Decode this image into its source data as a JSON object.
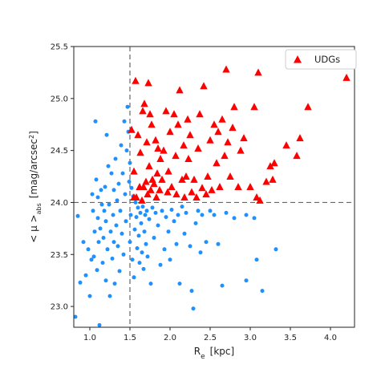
{
  "chart_data": {
    "type": "scatter",
    "title": "",
    "xlabel": "R",
    "xlabel_sub": "e",
    "xlabel_unit": "[kpc]",
    "ylabel": "< μ >",
    "ylabel_sub": "abs",
    "ylabel_unit": "[mag/arcsec",
    "ylabel_sup": "2",
    "ylabel_close": "]",
    "xlim": [
      0.8,
      4.3
    ],
    "ylim": [
      22.8,
      25.5
    ],
    "x_ticks": [
      1.0,
      1.5,
      2.0,
      2.5,
      3.0,
      3.5,
      4.0
    ],
    "x_tick_labels": [
      "1.0",
      "1.5",
      "2.0",
      "2.5",
      "3.0",
      "3.5",
      "4.0"
    ],
    "y_ticks": [
      23.0,
      23.5,
      24.0,
      24.5,
      25.0,
      25.5
    ],
    "y_tick_labels": [
      "23.0",
      "23.5",
      "24.0",
      "24.5",
      "25.0",
      "25.5"
    ],
    "grid": false,
    "legend_position": "top-right",
    "reference_lines": [
      {
        "orientation": "vertical",
        "value": 1.5,
        "style": "dashed"
      },
      {
        "orientation": "horizontal",
        "value": 24.0,
        "style": "dashed"
      }
    ],
    "series": [
      {
        "name": "",
        "marker": "circle",
        "color": "#1e90ff",
        "points": [
          [
            0.82,
            22.9
          ],
          [
            0.85,
            23.87
          ],
          [
            0.88,
            23.23
          ],
          [
            0.92,
            23.62
          ],
          [
            0.95,
            23.3
          ],
          [
            0.98,
            23.55
          ],
          [
            1.0,
            23.1
          ],
          [
            1.02,
            23.45
          ],
          [
            1.03,
            24.08
          ],
          [
            1.04,
            23.92
          ],
          [
            1.05,
            23.48
          ],
          [
            1.06,
            23.72
          ],
          [
            1.07,
            24.78
          ],
          [
            1.08,
            24.22
          ],
          [
            1.09,
            23.35
          ],
          [
            1.1,
            24.05
          ],
          [
            1.1,
            23.85
          ],
          [
            1.11,
            23.62
          ],
          [
            1.12,
            22.82
          ],
          [
            1.13,
            23.75
          ],
          [
            1.14,
            24.12
          ],
          [
            1.15,
            23.98
          ],
          [
            1.16,
            23.42
          ],
          [
            1.17,
            23.66
          ],
          [
            1.18,
            23.92
          ],
          [
            1.19,
            24.15
          ],
          [
            1.2,
            23.25
          ],
          [
            1.2,
            23.82
          ],
          [
            1.21,
            24.65
          ],
          [
            1.22,
            23.55
          ],
          [
            1.23,
            24.35
          ],
          [
            1.24,
            23.98
          ],
          [
            1.25,
            23.1
          ],
          [
            1.26,
            23.72
          ],
          [
            1.27,
            24.28
          ],
          [
            1.28,
            23.46
          ],
          [
            1.29,
            23.88
          ],
          [
            1.3,
            24.12
          ],
          [
            1.3,
            23.62
          ],
          [
            1.31,
            23.22
          ],
          [
            1.32,
            24.42
          ],
          [
            1.33,
            23.78
          ],
          [
            1.34,
            24.02
          ],
          [
            1.35,
            23.58
          ],
          [
            1.36,
            24.18
          ],
          [
            1.37,
            23.34
          ],
          [
            1.38,
            23.92
          ],
          [
            1.39,
            24.55
          ],
          [
            1.4,
            23.7
          ],
          [
            1.41,
            24.28
          ],
          [
            1.42,
            23.5
          ],
          [
            1.43,
            24.78
          ],
          [
            1.44,
            24.08
          ],
          [
            1.45,
            23.82
          ],
          [
            1.46,
            24.5
          ],
          [
            1.47,
            24.92
          ],
          [
            1.48,
            24.68
          ],
          [
            1.49,
            24.2
          ],
          [
            1.5,
            23.62
          ],
          [
            1.5,
            24.38
          ],
          [
            1.51,
            23.88
          ],
          [
            1.52,
            24.14
          ],
          [
            1.53,
            23.45
          ],
          [
            1.54,
            24.06
          ],
          [
            1.55,
            23.28
          ],
          [
            1.56,
            23.74
          ],
          [
            1.57,
            24.0
          ],
          [
            1.58,
            23.86
          ],
          [
            1.59,
            23.56
          ],
          [
            1.6,
            23.95
          ],
          [
            1.61,
            23.68
          ],
          [
            1.62,
            23.42
          ],
          [
            1.63,
            23.9
          ],
          [
            1.64,
            23.8
          ],
          [
            1.65,
            23.52
          ],
          [
            1.66,
            23.96
          ],
          [
            1.67,
            23.36
          ],
          [
            1.68,
            23.72
          ],
          [
            1.69,
            23.88
          ],
          [
            1.7,
            23.6
          ],
          [
            1.71,
            23.92
          ],
          [
            1.72,
            23.48
          ],
          [
            1.74,
            23.84
          ],
          [
            1.76,
            23.22
          ],
          [
            1.78,
            23.95
          ],
          [
            1.8,
            23.66
          ],
          [
            1.82,
            23.9
          ],
          [
            1.85,
            23.78
          ],
          [
            1.88,
            23.4
          ],
          [
            1.9,
            23.92
          ],
          [
            1.93,
            23.55
          ],
          [
            1.95,
            23.86
          ],
          [
            1.98,
            23.72
          ],
          [
            2.0,
            23.45
          ],
          [
            2.02,
            23.93
          ],
          [
            2.05,
            23.82
          ],
          [
            2.08,
            23.6
          ],
          [
            2.1,
            23.88
          ],
          [
            2.12,
            23.22
          ],
          [
            2.15,
            23.96
          ],
          [
            2.18,
            23.7
          ],
          [
            2.2,
            23.9
          ],
          [
            2.25,
            23.58
          ],
          [
            2.27,
            23.15
          ],
          [
            2.29,
            22.98
          ],
          [
            2.32,
            23.8
          ],
          [
            2.35,
            23.92
          ],
          [
            2.38,
            23.52
          ],
          [
            2.4,
            23.88
          ],
          [
            2.45,
            23.62
          ],
          [
            2.5,
            23.92
          ],
          [
            2.55,
            23.88
          ],
          [
            2.6,
            23.6
          ],
          [
            2.65,
            23.2
          ],
          [
            2.7,
            23.9
          ],
          [
            2.8,
            23.85
          ],
          [
            2.95,
            23.88
          ],
          [
            2.95,
            23.25
          ],
          [
            3.05,
            23.85
          ],
          [
            3.08,
            23.45
          ],
          [
            3.15,
            23.15
          ],
          [
            3.32,
            23.55
          ]
        ]
      },
      {
        "name": "UDGs",
        "marker": "triangle",
        "color": "#ff0000",
        "points": [
          [
            1.52,
            24.7
          ],
          [
            1.55,
            24.05
          ],
          [
            1.55,
            24.3
          ],
          [
            1.57,
            25.17
          ],
          [
            1.58,
            24.05
          ],
          [
            1.6,
            24.65
          ],
          [
            1.62,
            24.15
          ],
          [
            1.63,
            24.48
          ],
          [
            1.65,
            24.02
          ],
          [
            1.66,
            24.88
          ],
          [
            1.67,
            24.15
          ],
          [
            1.68,
            24.95
          ],
          [
            1.7,
            24.2
          ],
          [
            1.71,
            24.58
          ],
          [
            1.72,
            24.08
          ],
          [
            1.73,
            25.15
          ],
          [
            1.74,
            24.35
          ],
          [
            1.75,
            24.85
          ],
          [
            1.76,
            24.12
          ],
          [
            1.77,
            24.75
          ],
          [
            1.78,
            24.22
          ],
          [
            1.8,
            24.18
          ],
          [
            1.82,
            24.6
          ],
          [
            1.83,
            24.05
          ],
          [
            1.84,
            24.28
          ],
          [
            1.85,
            24.52
          ],
          [
            1.87,
            24.12
          ],
          [
            1.88,
            24.42
          ],
          [
            1.9,
            24.22
          ],
          [
            1.92,
            24.5
          ],
          [
            1.95,
            24.88
          ],
          [
            1.97,
            24.1
          ],
          [
            1.98,
            24.3
          ],
          [
            2.0,
            24.68
          ],
          [
            2.02,
            24.15
          ],
          [
            2.05,
            24.85
          ],
          [
            2.07,
            24.45
          ],
          [
            2.08,
            24.08
          ],
          [
            2.1,
            24.75
          ],
          [
            2.12,
            25.08
          ],
          [
            2.15,
            24.22
          ],
          [
            2.17,
            24.55
          ],
          [
            2.18,
            24.05
          ],
          [
            2.2,
            24.25
          ],
          [
            2.22,
            24.8
          ],
          [
            2.23,
            24.42
          ],
          [
            2.25,
            24.65
          ],
          [
            2.27,
            24.1
          ],
          [
            2.3,
            24.22
          ],
          [
            2.33,
            24.05
          ],
          [
            2.35,
            24.52
          ],
          [
            2.37,
            24.85
          ],
          [
            2.4,
            24.14
          ],
          [
            2.42,
            25.12
          ],
          [
            2.45,
            24.08
          ],
          [
            2.47,
            24.25
          ],
          [
            2.5,
            24.6
          ],
          [
            2.52,
            24.12
          ],
          [
            2.55,
            24.75
          ],
          [
            2.58,
            24.38
          ],
          [
            2.6,
            24.68
          ],
          [
            2.62,
            24.15
          ],
          [
            2.65,
            24.8
          ],
          [
            2.68,
            24.45
          ],
          [
            2.7,
            25.28
          ],
          [
            2.72,
            24.58
          ],
          [
            2.75,
            24.25
          ],
          [
            2.78,
            24.72
          ],
          [
            2.8,
            24.92
          ],
          [
            2.85,
            24.15
          ],
          [
            2.88,
            24.5
          ],
          [
            2.92,
            24.62
          ],
          [
            3.0,
            24.15
          ],
          [
            3.05,
            24.92
          ],
          [
            3.08,
            24.05
          ],
          [
            3.1,
            25.25
          ],
          [
            3.12,
            24.02
          ],
          [
            3.2,
            24.2
          ],
          [
            3.25,
            24.35
          ],
          [
            3.28,
            24.22
          ],
          [
            3.3,
            24.38
          ],
          [
            3.45,
            24.55
          ],
          [
            3.58,
            24.45
          ],
          [
            3.62,
            24.62
          ],
          [
            3.72,
            24.92
          ],
          [
            4.2,
            25.2
          ]
        ]
      }
    ]
  }
}
